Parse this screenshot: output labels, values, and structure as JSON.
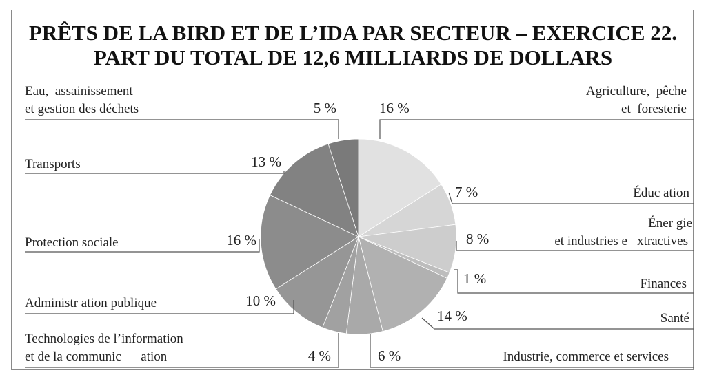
{
  "chart_data": {
    "type": "pie",
    "title": "PRÊTS DE LA BIRD ET DE L’IDA PAR SECTEUR – EXERCICE 22.",
    "subtitle": "PART DU TOTAL DE 12,6 MILLIARDS DE DOLLARS",
    "slices": [
      {
        "label_lines": [
          "Agriculture,  pêche",
          "et  foresterie"
        ],
        "value": 16,
        "value_label": "16 %",
        "color": "#e1e1e1"
      },
      {
        "label_lines": [
          "Éduc ation"
        ],
        "value": 7,
        "value_label": "7 %",
        "color": "#d6d6d6"
      },
      {
        "label_lines": [
          "Éner gie",
          "et industries e   xtractives"
        ],
        "value": 8,
        "value_label": "8 %",
        "color": "#cdcdcd"
      },
      {
        "label_lines": [
          "Finances"
        ],
        "value": 1,
        "value_label": "1 %",
        "color": "#bdbdbd"
      },
      {
        "label_lines": [
          "Santé"
        ],
        "value": 14,
        "value_label": "14 %",
        "color": "#b1b1b1"
      },
      {
        "label_lines": [
          "Industrie, commerce et services"
        ],
        "value": 6,
        "value_label": "6 %",
        "color": "#a9a9a9"
      },
      {
        "label_lines": [
          "Technologies de l’information",
          "et de la communic      ation"
        ],
        "value": 4,
        "value_label": "4 %",
        "color": "#a1a1a1"
      },
      {
        "label_lines": [
          "Administr ation publique"
        ],
        "value": 10,
        "value_label": "10 %",
        "color": "#969696"
      },
      {
        "label_lines": [
          "Protection sociale"
        ],
        "value": 16,
        "value_label": "16 %",
        "color": "#8c8c8c"
      },
      {
        "label_lines": [
          "Transports"
        ],
        "value": 13,
        "value_label": "13 %",
        "color": "#828282"
      },
      {
        "label_lines": [
          "Eau,  assainissement",
          "et gestion des déchets"
        ],
        "value": 5,
        "value_label": "5 %",
        "color": "#7a7a7a"
      }
    ]
  }
}
